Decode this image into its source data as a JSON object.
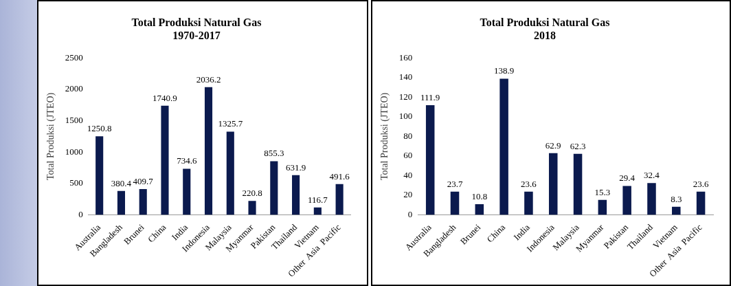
{
  "chart_data": [
    {
      "type": "bar",
      "title": "Total Produksi Natural Gas",
      "subtitle": "1970-2017",
      "ylabel": "Total Produksi (JTEO)",
      "categories": [
        "Australia",
        "Bangladesh",
        "Brunei",
        "China",
        "India",
        "Indonesia",
        "Malaysia",
        "Myanmar",
        "Pakistan",
        "Thailand",
        "Vietnam",
        "Other  Asia  Pacific"
      ],
      "values": [
        1250.8,
        380.4,
        409.7,
        1740.9,
        734.6,
        2036.2,
        1325.7,
        220.8,
        855.3,
        631.9,
        116.7,
        491.6
      ],
      "color": "#0b1a4e",
      "ylim": [
        0,
        2500
      ],
      "yticks": [
        0,
        500,
        1000,
        1500,
        2000,
        2500
      ],
      "data_labels": true
    },
    {
      "type": "bar",
      "title": "Total Produksi Natural Gas",
      "subtitle": "2018",
      "ylabel": "Total Produksi (JTEO)",
      "categories": [
        "Australia",
        "Bangladesh",
        "Brunei",
        "China",
        "India",
        "Indonesia",
        "Malaysia",
        "Myanmar",
        "Pakistan",
        "Thailand",
        "Vietnam",
        "Other  Asia  Pacific"
      ],
      "values": [
        111.9,
        23.7,
        10.8,
        138.9,
        23.6,
        62.9,
        62.3,
        15.3,
        29.4,
        32.4,
        8.3,
        23.6
      ],
      "color": "#0b1a4e",
      "ylim": [
        0,
        160
      ],
      "yticks": [
        0,
        20,
        40,
        60,
        80,
        100,
        120,
        140,
        160
      ],
      "data_labels": true
    }
  ]
}
